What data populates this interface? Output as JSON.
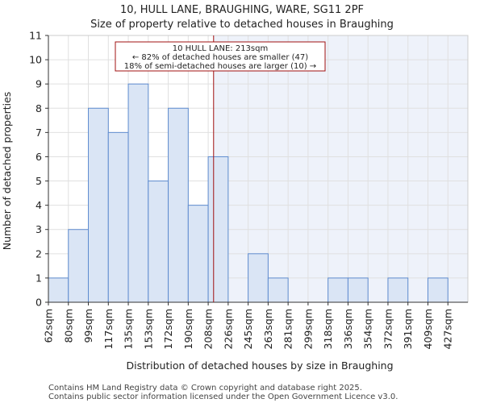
{
  "chart_data": {
    "type": "bar",
    "title": "10, HULL LANE, BRAUGHING, WARE, SG11 2PF",
    "subtitle": "Size of property relative to detached houses in Braughing",
    "xlabel": "Distribution of detached houses by size in Braughing",
    "ylabel": "Number of detached properties",
    "categories": [
      "62sqm",
      "80sqm",
      "99sqm",
      "117sqm",
      "135sqm",
      "153sqm",
      "172sqm",
      "190sqm",
      "208sqm",
      "226sqm",
      "245sqm",
      "263sqm",
      "281sqm",
      "299sqm",
      "318sqm",
      "336sqm",
      "354sqm",
      "372sqm",
      "391sqm",
      "409sqm",
      "427sqm"
    ],
    "values": [
      1,
      3,
      8,
      7,
      9,
      5,
      8,
      4,
      6,
      0,
      2,
      1,
      0,
      0,
      1,
      1,
      0,
      1,
      0,
      1,
      0
    ],
    "yticks": [
      "0",
      "1",
      "2",
      "3",
      "4",
      "5",
      "6",
      "7",
      "8",
      "9",
      "10",
      "11"
    ],
    "ylim": [
      0,
      11
    ],
    "grid": true,
    "marker": {
      "label": "10 HULL LANE: 213sqm",
      "value_index": 8.27
    },
    "annotation": [
      "10 HULL LANE: 213sqm",
      "← 82% of detached houses are smaller (47)",
      "18% of semi-detached houses are larger (10) →"
    ],
    "colors": {
      "bar_fill": "#dae5f5",
      "bar_stroke": "#5f8ccf",
      "marker": "#a01010",
      "highlight_bg": "#eef2fa",
      "grid": "#e0e0e0"
    }
  },
  "footer": [
    "Contains HM Land Registry data © Crown copyright and database right 2025.",
    "Contains public sector information licensed under the Open Government Licence v3.0."
  ]
}
